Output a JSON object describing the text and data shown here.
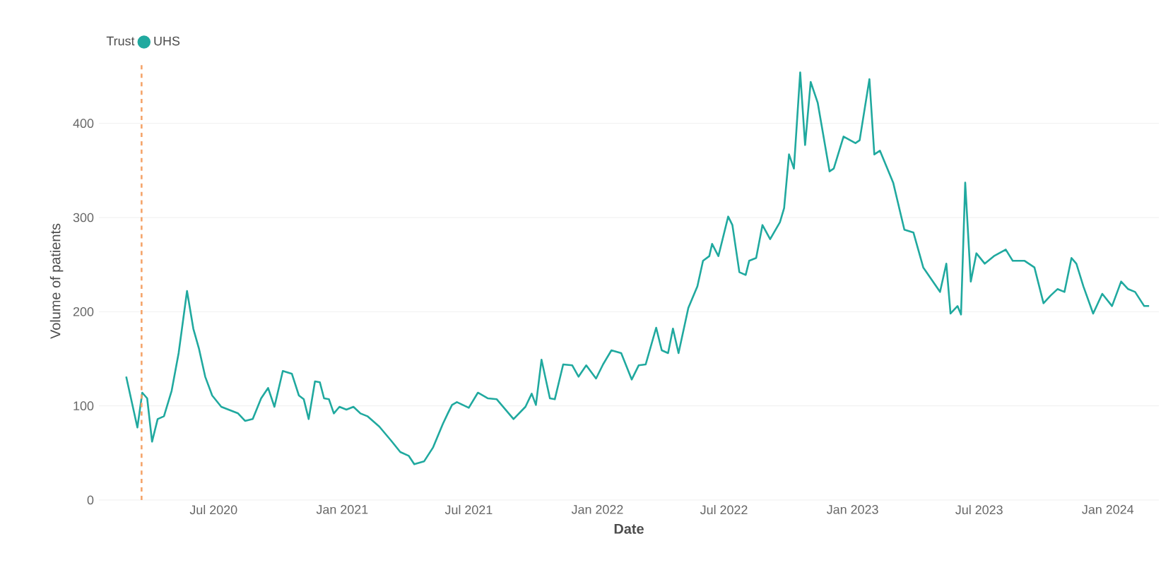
{
  "chart_data": {
    "type": "line",
    "xlabel": "Date",
    "ylabel": "Volume of patients",
    "legend_title": "Trust",
    "legend": "top left",
    "grid": "y",
    "marker": "none",
    "line_style": "solid",
    "xlim": [
      "2020-01-19",
      "2024-03-14"
    ],
    "ylim": [
      0,
      465
    ],
    "xticks": [
      {
        "value": "2020-07-01",
        "label": "Jul 2020"
      },
      {
        "value": "2021-01-01",
        "label": "Jan 2021"
      },
      {
        "value": "2021-07-01",
        "label": "Jul 2021"
      },
      {
        "value": "2022-01-01",
        "label": "Jan 2022"
      },
      {
        "value": "2022-07-01",
        "label": "Jul 2022"
      },
      {
        "value": "2023-01-01",
        "label": "Jan 2023"
      },
      {
        "value": "2023-07-01",
        "label": "Jul 2023"
      },
      {
        "value": "2024-01-01",
        "label": "Jan 2024"
      }
    ],
    "yticks": [
      0,
      100,
      200,
      300,
      400
    ],
    "ref_lines": [
      {
        "axis": "x",
        "value": "2020-03-20",
        "color": "#f5a46a",
        "line_style": "dashed"
      }
    ],
    "x": [
      "2020-02-27",
      "2020-03-14",
      "2020-03-21",
      "2020-03-28",
      "2020-04-04",
      "2020-04-12",
      "2020-04-21",
      "2020-05-02",
      "2020-05-12",
      "2020-05-24",
      "2020-06-02",
      "2020-06-10",
      "2020-06-19",
      "2020-06-29",
      "2020-07-12",
      "2020-08-05",
      "2020-08-15",
      "2020-08-26",
      "2020-09-07",
      "2020-09-17",
      "2020-09-26",
      "2020-10-08",
      "2020-10-21",
      "2020-10-31",
      "2020-11-07",
      "2020-11-14",
      "2020-11-23",
      "2020-11-30",
      "2020-12-06",
      "2020-12-13",
      "2020-12-20",
      "2020-12-28",
      "2021-01-07",
      "2021-01-17",
      "2021-01-27",
      "2021-02-06",
      "2021-02-23",
      "2021-03-12",
      "2021-03-25",
      "2021-04-06",
      "2021-04-14",
      "2021-04-28",
      "2021-05-11",
      "2021-05-25",
      "2021-06-01",
      "2021-06-07",
      "2021-06-14",
      "2021-07-01",
      "2021-07-14",
      "2021-07-28",
      "2021-08-10",
      "2021-09-03",
      "2021-09-20",
      "2021-09-29",
      "2021-10-05",
      "2021-10-13",
      "2021-10-25",
      "2021-11-01",
      "2021-11-13",
      "2021-11-26",
      "2021-12-05",
      "2021-12-16",
      "2021-12-30",
      "2022-01-09",
      "2022-01-21",
      "2022-02-04",
      "2022-02-19",
      "2022-03-01",
      "2022-03-11",
      "2022-03-26",
      "2022-04-03",
      "2022-04-12",
      "2022-04-19",
      "2022-04-27",
      "2022-05-11",
      "2022-05-24",
      "2022-06-01",
      "2022-06-10",
      "2022-06-14",
      "2022-06-23",
      "2022-07-07",
      "2022-07-13",
      "2022-07-23",
      "2022-08-01",
      "2022-08-06",
      "2022-08-16",
      "2022-08-25",
      "2022-09-05",
      "2022-09-19",
      "2022-09-25",
      "2022-10-02",
      "2022-10-09",
      "2022-10-18",
      "2022-10-25",
      "2022-11-02",
      "2022-11-12",
      "2022-11-29",
      "2022-12-05",
      "2022-12-19",
      "2023-01-05",
      "2023-01-11",
      "2023-01-25",
      "2023-02-01",
      "2023-02-09",
      "2023-02-28",
      "2023-03-16",
      "2023-03-29",
      "2023-04-12",
      "2023-05-06",
      "2023-05-15",
      "2023-05-21",
      "2023-05-31",
      "2023-06-05",
      "2023-06-11",
      "2023-06-19",
      "2023-06-27",
      "2023-07-09",
      "2023-07-22",
      "2023-08-08",
      "2023-08-18",
      "2023-09-04",
      "2023-09-18",
      "2023-10-01",
      "2023-10-11",
      "2023-10-21",
      "2023-10-31",
      "2023-11-10",
      "2023-11-17",
      "2023-11-27",
      "2023-12-11",
      "2023-12-24",
      "2024-01-07",
      "2024-01-20",
      "2024-01-30",
      "2024-02-09",
      "2024-02-22",
      "2024-02-29"
    ],
    "series": [
      {
        "name": "UHS",
        "color": "#20a99f",
        "values": [
          131,
          77,
          114,
          108,
          62,
          86,
          89,
          116,
          156,
          222,
          182,
          161,
          131,
          111,
          99,
          92,
          84,
          86,
          108,
          119,
          99,
          137,
          134,
          111,
          107,
          86,
          126,
          125,
          108,
          107,
          92,
          99,
          96,
          99,
          92,
          89,
          78,
          63,
          51,
          47,
          38,
          41,
          56,
          81,
          92,
          101,
          104,
          98,
          114,
          108,
          107,
          86,
          99,
          113,
          101,
          149,
          108,
          107,
          144,
          143,
          131,
          143,
          129,
          144,
          159,
          156,
          128,
          143,
          144,
          183,
          159,
          156,
          182,
          156,
          204,
          227,
          254,
          259,
          272,
          259,
          301,
          292,
          242,
          239,
          254,
          257,
          292,
          277,
          295,
          310,
          367,
          352,
          454,
          377,
          444,
          422,
          349,
          352,
          386,
          379,
          382,
          447,
          367,
          371,
          337,
          287,
          284,
          247,
          221,
          251,
          198,
          206,
          197,
          337,
          232,
          262,
          251,
          259,
          266,
          254,
          254,
          247,
          209,
          217,
          224,
          221,
          257,
          251,
          227,
          198,
          219,
          206,
          232,
          224,
          221,
          206,
          206
        ]
      }
    ]
  }
}
